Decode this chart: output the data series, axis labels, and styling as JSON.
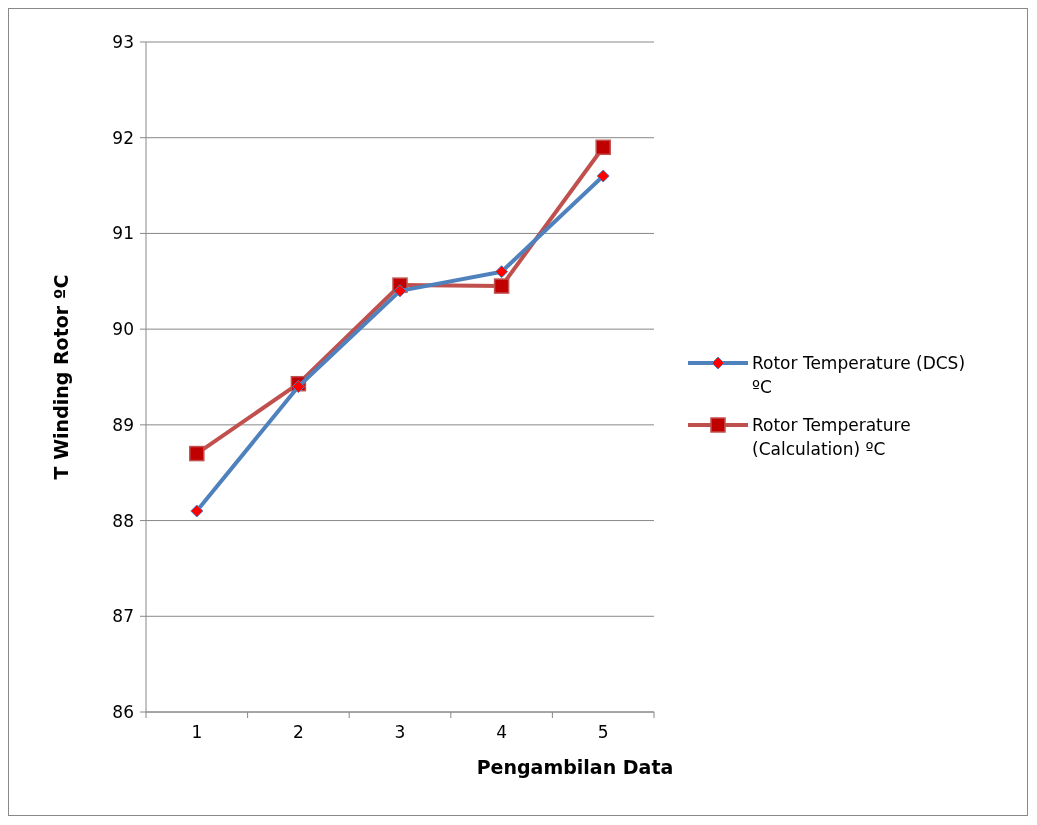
{
  "chart_data": {
    "type": "line",
    "xlabel": "Pengambilan Data",
    "ylabel": "T Winding Rotor ºC",
    "categories": [
      "1",
      "2",
      "3",
      "4",
      "5"
    ],
    "series": [
      {
        "name": "Rotor Temperature (DCS) ºC",
        "color": "#4f81bd",
        "marker": "diamond",
        "values": [
          88.1,
          89.4,
          90.4,
          90.6,
          91.6
        ]
      },
      {
        "name": "Rotor Temperature (Calculation) ºC",
        "color": "#c0504d",
        "marker": "square",
        "values": [
          88.7,
          89.43,
          90.46,
          90.45,
          91.9
        ]
      }
    ],
    "ylim": [
      86,
      93
    ],
    "yticks": [
      86,
      87,
      88,
      89,
      90,
      91,
      92,
      93
    ],
    "grid": "y",
    "legend": "right",
    "line_style": "solid"
  }
}
